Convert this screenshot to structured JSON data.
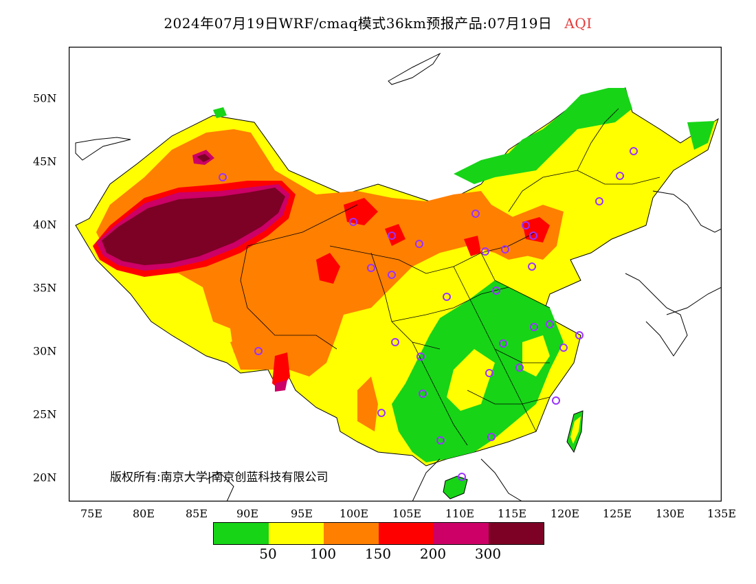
{
  "title": {
    "main": "2024年07月19日WRF/cmaq模式36km预报产品:07月19日",
    "variable": "AQI"
  },
  "axes": {
    "lat_labels": [
      "50N",
      "45N",
      "40N",
      "35N",
      "30N",
      "25N",
      "20N"
    ],
    "lon_labels": [
      "75E",
      "80E",
      "85E",
      "90E",
      "95E",
      "100E",
      "105E",
      "110E",
      "115E",
      "120E",
      "125E",
      "130E",
      "135E"
    ]
  },
  "copyright": "版权所有:南京大学|南京创蓝科技有限公司",
  "legend": {
    "colors": [
      "#17d417",
      "#ffff00",
      "#ff7f00",
      "#ff0000",
      "#cc0066",
      "#7d0025"
    ],
    "labels": [
      "50",
      "100",
      "150",
      "200",
      "300"
    ]
  },
  "colors": {
    "good": "#17d417",
    "moderate": "#ffff00",
    "unhealthy_sensitive": "#ff7f00",
    "unhealthy": "#ff0000",
    "very_unhealthy": "#cc0066",
    "hazardous": "#7d0025",
    "city_marker": "#9933ff"
  }
}
